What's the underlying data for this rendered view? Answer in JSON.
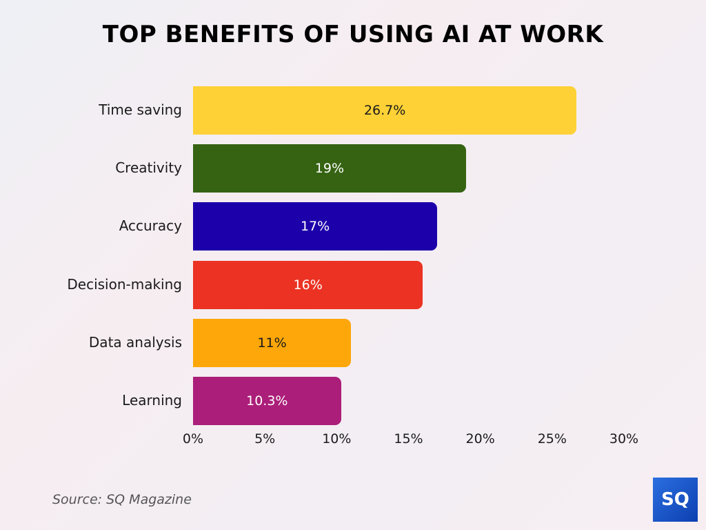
{
  "title": "TOP BENEFITS OF USING AI AT WORK",
  "source": "Source: SQ Magazine",
  "logo": "SQ",
  "bars": [
    {
      "label": "Time saving",
      "value_label": "26.7%",
      "color": "#fed136",
      "text_color": "#1a1a1a"
    },
    {
      "label": "Creativity",
      "value_label": "19%",
      "color": "#356312",
      "text_color": "#ffffff"
    },
    {
      "label": "Accuracy",
      "value_label": "17%",
      "color": "#1c00aa",
      "text_color": "#ffffff"
    },
    {
      "label": "Decision-making",
      "value_label": "16%",
      "color": "#eb3223",
      "text_color": "#ffffff"
    },
    {
      "label": "Data analysis",
      "value_label": "11%",
      "color": "#fda70a",
      "text_color": "#1a1a1a"
    },
    {
      "label": "Learning",
      "value_label": "10.3%",
      "color": "#ab1e79",
      "text_color": "#ffffff"
    }
  ],
  "ticks": [
    "0%",
    "5%",
    "10%",
    "15%",
    "20%",
    "25%",
    "30%"
  ],
  "chart_data": {
    "type": "bar",
    "orientation": "horizontal",
    "title": "TOP BENEFITS OF USING AI AT WORK",
    "categories": [
      "Time saving",
      "Creativity",
      "Accuracy",
      "Decision-making",
      "Data analysis",
      "Learning"
    ],
    "values": [
      26.7,
      19,
      17,
      16,
      11,
      10.3
    ],
    "xlabel": "",
    "ylabel": "",
    "xlim": [
      0,
      30
    ],
    "xticks": [
      "0%",
      "5%",
      "10%",
      "15%",
      "20%",
      "25%",
      "30%"
    ],
    "grid": false,
    "legend": null,
    "colors": [
      "#fed136",
      "#356312",
      "#1c00aa",
      "#eb3223",
      "#fda70a",
      "#ab1e79"
    ],
    "annotation": "Source: SQ Magazine"
  }
}
